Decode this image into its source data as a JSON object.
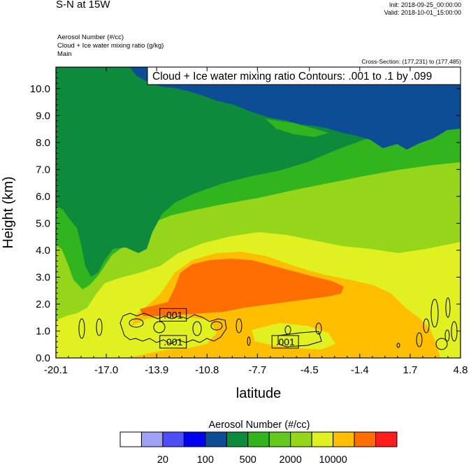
{
  "header": {
    "title": "S-N at 15W",
    "init": "Init: 2018-09-25_00:00:00",
    "valid": "Valid: 2018-10-01_15:00:00",
    "fields": [
      "Aerosol Number   (#/cc)",
      "Cloud + Ice water mixing ratio   (g/kg)",
      "Main"
    ],
    "cross_section": "Cross-Section: (177,231) to (177,485)"
  },
  "chart_data": {
    "type": "heatmap",
    "title": "Cloud + Ice water mixing ratio Contours: .001 to .1 by .099",
    "xlabel": "latitude",
    "ylabel": "Height (km)",
    "xlim": [
      -20.1,
      4.8
    ],
    "ylim": [
      0.0,
      10.8
    ],
    "x_ticks": [
      "-20.1",
      "-17.0",
      "-13.9",
      "-10.8",
      "-7.7",
      "-4.5",
      "-1.4",
      "1.7",
      "4.8"
    ],
    "y_ticks": [
      "0.0",
      "1.0",
      "2.0",
      "3.0",
      "4.0",
      "5.0",
      "6.0",
      "7.0",
      "8.0",
      "9.0",
      "10.0"
    ],
    "contour_labels": [
      {
        "x": -12.8,
        "y": 1.6,
        "text": ".001"
      },
      {
        "x": -12.8,
        "y": 0.6,
        "text": ".001"
      },
      {
        "x": -5.9,
        "y": 0.6,
        "text": ".001"
      }
    ],
    "colorbar": {
      "title": "Aerosol Number  (#/cc)",
      "colors": [
        "#ffffff",
        "#a0a0f6",
        "#4e4ef6",
        "#0000f0",
        "#0d4d96",
        "#0d8a3c",
        "#32b41e",
        "#64c91e",
        "#96d61a",
        "#e0f020",
        "#ffbe00",
        "#ff6e00",
        "#ff1e1e"
      ],
      "tick_labels": [
        "20",
        "100",
        "500",
        "2000",
        "10000"
      ]
    },
    "regions": [
      {
        "level": 6,
        "color": "#32b41e"
      },
      {
        "level": 7,
        "color": "#64c91e"
      },
      {
        "level": 5,
        "color": "#0d8a3c"
      },
      {
        "level": 4,
        "color": "#0d4d96"
      },
      {
        "level": 8,
        "color": "#96d61a"
      },
      {
        "level": 9,
        "color": "#e0f020"
      },
      {
        "level": 10,
        "color": "#ffbe00"
      },
      {
        "level": 11,
        "color": "#ff6e00"
      }
    ]
  }
}
